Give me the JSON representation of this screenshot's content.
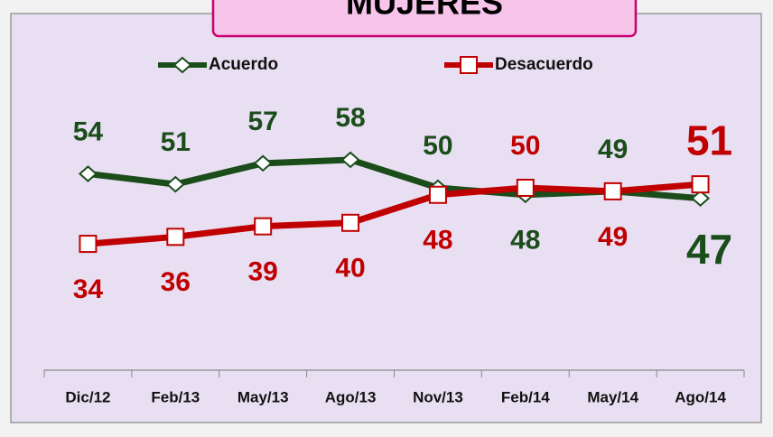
{
  "chart_data": {
    "type": "line",
    "title": "MUJERES",
    "categories": [
      "Dic/12",
      "Feb/13",
      "May/13",
      "Ago/13",
      "Nov/13",
      "Feb/14",
      "May/14",
      "Ago/14"
    ],
    "series": [
      {
        "name": "Acuerdo",
        "color": "#1b4d1b",
        "values": [
          54,
          51,
          57,
          58,
          50,
          48,
          49,
          47
        ]
      },
      {
        "name": "Desacuerdo",
        "color": "#c00000",
        "values": [
          34,
          36,
          39,
          40,
          48,
          50,
          49,
          51
        ]
      }
    ],
    "ylim": [
      0,
      100
    ]
  }
}
